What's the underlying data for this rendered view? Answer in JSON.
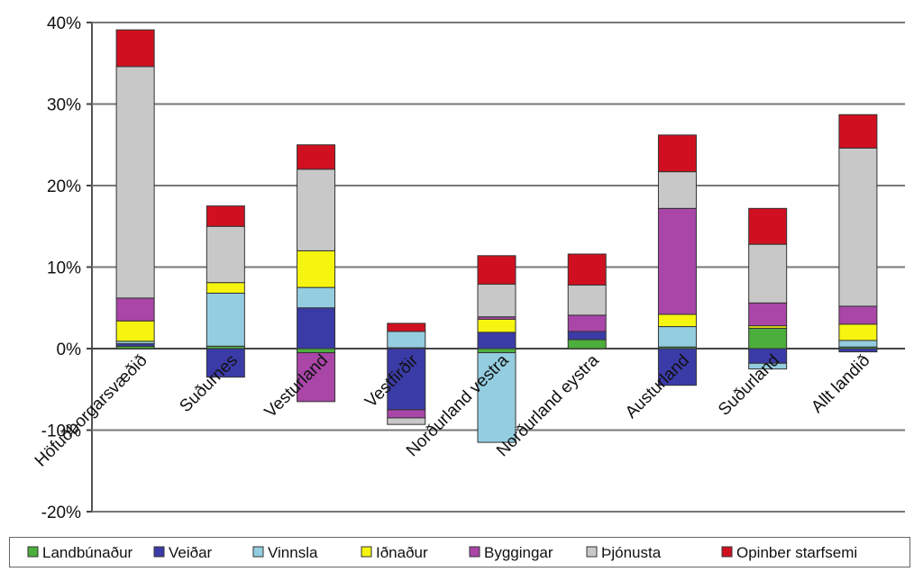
{
  "chart_data": {
    "type": "bar",
    "stacked": true,
    "ylim": [
      -20,
      40
    ],
    "yticks": [
      -20,
      -10,
      0,
      10,
      20,
      30,
      40
    ],
    "ytick_labels": [
      "-20%",
      "-10%",
      "0%",
      "10%",
      "20%",
      "30%",
      "40%"
    ],
    "grid": true,
    "legend_position": "bottom",
    "categories": [
      "Höfuðborgarsvæðið",
      "Suðurnes",
      "Vesturland",
      "Vestfirðir",
      "Norðurland vestra",
      "Norðurland eystra",
      "Austurland",
      "Suðurland",
      "Allt landið"
    ],
    "series": [
      {
        "name": "Landbúnaður",
        "color": "#4cae3c",
        "values": [
          0.3,
          0.3,
          -0.5,
          0.1,
          -0.5,
          1.1,
          0.2,
          2.5,
          0.2
        ]
      },
      {
        "name": "Veiðar",
        "color": "#3b3ba8",
        "values": [
          0.3,
          -3.5,
          5.0,
          -7.5,
          2.0,
          1.0,
          -4.5,
          -1.8,
          -0.4
        ]
      },
      {
        "name": "Vinnsla",
        "color": "#94cde0",
        "values": [
          0.3,
          6.5,
          2.5,
          2.0,
          -11.0,
          0.0,
          2.5,
          -0.7,
          0.8
        ]
      },
      {
        "name": "Iðnaður",
        "color": "#f5f510",
        "values": [
          2.5,
          1.3,
          4.5,
          0.0,
          1.6,
          0.0,
          1.5,
          0.3,
          2.0
        ]
      },
      {
        "name": "Byggingar",
        "color": "#a946a8",
        "values": [
          2.8,
          0.0,
          -6.0,
          -1.0,
          0.3,
          2.0,
          13.0,
          2.8,
          2.2
        ]
      },
      {
        "name": "Þjónusta",
        "color": "#c8c8c8",
        "values": [
          28.4,
          6.9,
          10.0,
          -0.8,
          4.0,
          3.7,
          4.5,
          7.2,
          19.4
        ]
      },
      {
        "name": "Opinber starfsemi",
        "color": "#d01020",
        "values": [
          4.5,
          2.5,
          3.0,
          1.0,
          3.5,
          3.8,
          4.5,
          4.4,
          4.1
        ]
      }
    ]
  }
}
